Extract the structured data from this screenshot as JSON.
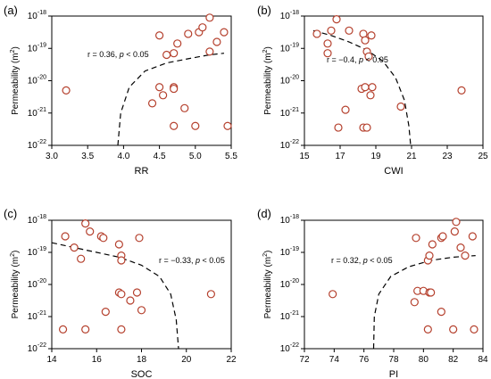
{
  "figure": {
    "marker_stroke": "#b5412e",
    "marker_fill": "#ffffff",
    "trend_color": "#000000"
  },
  "chart_data": [
    {
      "panel_label": "(a)",
      "type": "scatter",
      "xlabel": "RR",
      "ylabel_main": "Permeability (m",
      "ylabel_sup": "2",
      "ylabel_tail": ")",
      "xlim": [
        3.0,
        5.5
      ],
      "x_ticks": [
        "3.0",
        "3.5",
        "4.0",
        "4.5",
        "5.0",
        "5.5"
      ],
      "y_log": true,
      "ylim_exp": [
        -22,
        -18
      ],
      "y_tick_exps": [
        "-22",
        "-21",
        "-20",
        "-19",
        "-18"
      ],
      "annotation": {
        "prefix": "r = 0.36, ",
        "italic": "p",
        "suffix": " < 0.05"
      },
      "points": [
        [
          3.2,
          -20.3
        ],
        [
          4.5,
          -18.6
        ],
        [
          4.6,
          -19.2
        ],
        [
          4.7,
          -19.15
        ],
        [
          4.75,
          -18.85
        ],
        [
          4.9,
          -18.55
        ],
        [
          5.05,
          -18.5
        ],
        [
          5.1,
          -18.35
        ],
        [
          5.2,
          -18.05
        ],
        [
          5.3,
          -18.8
        ],
        [
          5.4,
          -18.5
        ],
        [
          5.2,
          -19.1
        ],
        [
          4.5,
          -20.2
        ],
        [
          4.55,
          -20.45
        ],
        [
          4.7,
          -20.2
        ],
        [
          4.7,
          -20.25
        ],
        [
          4.4,
          -20.7
        ],
        [
          4.85,
          -20.85
        ],
        [
          4.7,
          -21.4
        ],
        [
          5.0,
          -21.4
        ],
        [
          5.45,
          -21.4
        ]
      ],
      "trend": [
        [
          3.92,
          -22.0
        ],
        [
          3.96,
          -21.0
        ],
        [
          4.08,
          -20.2
        ],
        [
          4.3,
          -19.7
        ],
        [
          4.6,
          -19.45
        ],
        [
          4.95,
          -19.3
        ],
        [
          5.2,
          -19.2
        ],
        [
          5.4,
          -19.15
        ]
      ]
    },
    {
      "panel_label": "(b)",
      "type": "scatter",
      "xlabel": "CWI",
      "ylabel_main": "Permeability (m",
      "ylabel_sup": "2",
      "ylabel_tail": ")",
      "xlim": [
        15,
        25
      ],
      "x_ticks": [
        "15",
        "17",
        "19",
        "21",
        "23",
        "25"
      ],
      "y_log": true,
      "ylim_exp": [
        -22,
        -18
      ],
      "y_tick_exps": [
        "-22",
        "-21",
        "-20",
        "-19",
        "-18"
      ],
      "annotation": {
        "prefix": "r = −0.4, ",
        "italic": "p",
        "suffix": " < 0.05"
      },
      "points": [
        [
          15.7,
          -18.55
        ],
        [
          16.3,
          -18.85
        ],
        [
          16.3,
          -19.15
        ],
        [
          16.5,
          -18.45
        ],
        [
          16.8,
          -18.1
        ],
        [
          17.5,
          -18.45
        ],
        [
          18.3,
          -18.55
        ],
        [
          18.4,
          -18.75
        ],
        [
          18.5,
          -19.1
        ],
        [
          18.6,
          -19.25
        ],
        [
          18.75,
          -18.6
        ],
        [
          18.2,
          -20.25
        ],
        [
          18.4,
          -20.2
        ],
        [
          18.8,
          -20.2
        ],
        [
          18.7,
          -20.45
        ],
        [
          17.3,
          -20.9
        ],
        [
          16.9,
          -21.45
        ],
        [
          18.3,
          -21.45
        ],
        [
          18.5,
          -21.45
        ],
        [
          20.4,
          -20.8
        ],
        [
          23.8,
          -20.3
        ]
      ],
      "trend": [
        [
          15.5,
          -18.45
        ],
        [
          16.5,
          -18.6
        ],
        [
          17.5,
          -18.8
        ],
        [
          18.5,
          -19.05
        ],
        [
          19.4,
          -19.4
        ],
        [
          20.1,
          -19.9
        ],
        [
          20.6,
          -20.6
        ],
        [
          20.85,
          -21.4
        ],
        [
          20.95,
          -22.0
        ]
      ]
    },
    {
      "panel_label": "(c)",
      "type": "scatter",
      "xlabel": "SOC",
      "ylabel_main": "Permeability (m",
      "ylabel_sup": "2",
      "ylabel_tail": ")",
      "xlim": [
        14,
        22
      ],
      "x_ticks": [
        "14",
        "16",
        "18",
        "20",
        "22"
      ],
      "y_log": true,
      "ylim_exp": [
        -22,
        -18
      ],
      "y_tick_exps": [
        "-22",
        "-21",
        "-20",
        "-19",
        "-18"
      ],
      "annotation": {
        "prefix": "r = −0.33, ",
        "italic": "p",
        "suffix": " < 0.05"
      },
      "points": [
        [
          14.6,
          -18.5
        ],
        [
          15.0,
          -18.85
        ],
        [
          15.3,
          -19.2
        ],
        [
          15.5,
          -18.1
        ],
        [
          15.7,
          -18.35
        ],
        [
          16.2,
          -18.5
        ],
        [
          16.3,
          -18.55
        ],
        [
          17.0,
          -18.75
        ],
        [
          17.1,
          -19.1
        ],
        [
          17.1,
          -19.25
        ],
        [
          17.9,
          -18.55
        ],
        [
          17.0,
          -20.25
        ],
        [
          17.1,
          -20.3
        ],
        [
          17.8,
          -20.25
        ],
        [
          17.5,
          -20.5
        ],
        [
          16.4,
          -20.85
        ],
        [
          14.5,
          -21.4
        ],
        [
          15.5,
          -21.4
        ],
        [
          17.1,
          -21.4
        ],
        [
          18.0,
          -20.8
        ],
        [
          21.1,
          -20.3
        ]
      ],
      "trend": [
        [
          14.0,
          -18.7
        ],
        [
          15.0,
          -18.85
        ],
        [
          16.0,
          -19.0
        ],
        [
          17.0,
          -19.15
        ],
        [
          18.0,
          -19.4
        ],
        [
          18.8,
          -19.75
        ],
        [
          19.3,
          -20.3
        ],
        [
          19.55,
          -21.1
        ],
        [
          19.65,
          -22.0
        ]
      ]
    },
    {
      "panel_label": "(d)",
      "type": "scatter",
      "xlabel": "PI",
      "ylabel_main": "Permeability (m",
      "ylabel_sup": "2",
      "ylabel_tail": ")",
      "xlim": [
        72,
        84
      ],
      "x_ticks": [
        "72",
        "74",
        "76",
        "78",
        "80",
        "82",
        "84"
      ],
      "y_log": true,
      "ylim_exp": [
        -22,
        -18
      ],
      "y_tick_exps": [
        "-22",
        "-21",
        "-20",
        "-19",
        "-18"
      ],
      "annotation": {
        "prefix": "r = 0.32, ",
        "italic": "p",
        "suffix": " < 0.05"
      },
      "points": [
        [
          73.9,
          -20.3
        ],
        [
          79.5,
          -18.55
        ],
        [
          80.3,
          -19.25
        ],
        [
          80.4,
          -19.1
        ],
        [
          80.6,
          -18.75
        ],
        [
          81.2,
          -18.55
        ],
        [
          81.3,
          -18.5
        ],
        [
          82.1,
          -18.35
        ],
        [
          82.2,
          -18.05
        ],
        [
          82.5,
          -18.85
        ],
        [
          82.8,
          -19.1
        ],
        [
          83.3,
          -18.5
        ],
        [
          79.6,
          -20.2
        ],
        [
          80.0,
          -20.2
        ],
        [
          80.4,
          -20.25
        ],
        [
          80.5,
          -20.25
        ],
        [
          79.4,
          -20.55
        ],
        [
          81.2,
          -20.85
        ],
        [
          80.3,
          -21.4
        ],
        [
          82.0,
          -21.4
        ],
        [
          83.4,
          -21.4
        ]
      ],
      "trend": [
        [
          76.65,
          -22.0
        ],
        [
          76.7,
          -21.0
        ],
        [
          77.0,
          -20.3
        ],
        [
          77.8,
          -19.75
        ],
        [
          79.0,
          -19.45
        ],
        [
          80.5,
          -19.25
        ],
        [
          82.0,
          -19.15
        ],
        [
          83.5,
          -19.1
        ]
      ]
    }
  ]
}
